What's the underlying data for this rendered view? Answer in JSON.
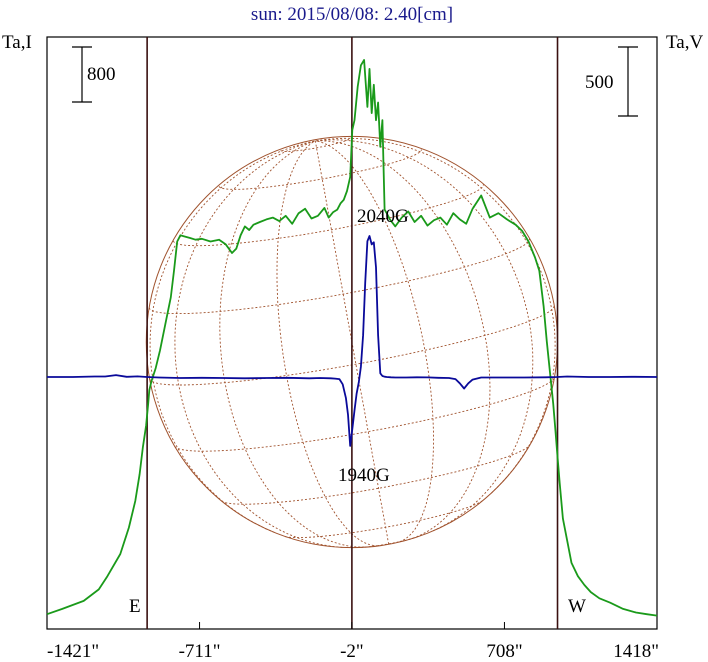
{
  "title": "sun: 2015/08/08: 2.40[cm]",
  "left_axis_label": "Ta,I",
  "right_axis_label": "Ta,V",
  "left_scale_bar": "800",
  "right_scale_bar": "500",
  "limb_left_label": "E",
  "limb_right_label": "W",
  "annotations": [
    "2040G",
    "1940G"
  ],
  "colors": {
    "title": "#1a1a8c",
    "stokes_i": "#1a9a1a",
    "stokes_v": "#0a0a9a",
    "grid": "#a0522d",
    "frame": "#000000",
    "limb_lines": "#3a1010"
  },
  "chart_data": {
    "type": "line",
    "title": "sun: 2015/08/08: 2.40[cm]",
    "xlabel": "",
    "x_tick_labels": [
      "-1421\"",
      "-711\"",
      "-2\"",
      "708\"",
      "1418\""
    ],
    "x_ticks": [
      -1421,
      -711,
      -2,
      708,
      1418
    ],
    "xlim": [
      -1421,
      1418
    ],
    "limb_positions": [
      -955,
      955
    ],
    "center": -2,
    "series": [
      {
        "name": "Ta,I",
        "color": "#1a9a1a",
        "x": [
          -1421,
          -1350,
          -1250,
          -1180,
          -1140,
          -1080,
          -1040,
          -1010,
          -990,
          -975,
          -960,
          -950,
          -945,
          -935,
          -915,
          -895,
          -870,
          -845,
          -830,
          -815,
          -800,
          -785,
          -770,
          -755,
          -730,
          -700,
          -660,
          -620,
          -590,
          -560,
          -540,
          -520,
          -500,
          -480,
          -460,
          -430,
          -400,
          -370,
          -340,
          -310,
          -280,
          -250,
          -220,
          -190,
          -160,
          -130,
          -110,
          -90,
          -70,
          -55,
          -40,
          -25,
          -10,
          0,
          10,
          25,
          40,
          55,
          70,
          80,
          90,
          100,
          110,
          120,
          130,
          140,
          150,
          160,
          175,
          200,
          230,
          260,
          290,
          320,
          350,
          380,
          410,
          440,
          470,
          500,
          530,
          560,
          600,
          640,
          680,
          720,
          760,
          790,
          820,
          850,
          870,
          890,
          905,
          920,
          935,
          945,
          955,
          965,
          980,
          1000,
          1020,
          1050,
          1080,
          1110,
          1150,
          1200,
          1260,
          1320,
          1370,
          1418
        ],
        "y": [
          20,
          80,
          170,
          300,
          450,
          700,
          1000,
          1300,
          1600,
          1900,
          2150,
          2400,
          2550,
          2650,
          2800,
          3000,
          3300,
          3600,
          3900,
          4230,
          4300,
          4290,
          4280,
          4270,
          4250,
          4260,
          4230,
          4250,
          4200,
          4100,
          4150,
          4300,
          4400,
          4360,
          4420,
          4450,
          4480,
          4500,
          4460,
          4520,
          4430,
          4550,
          4600,
          4490,
          4520,
          4610,
          4500,
          4560,
          4590,
          4660,
          4700,
          4800,
          4960,
          5490,
          5600,
          5980,
          6220,
          6280,
          5750,
          6180,
          5680,
          6000,
          5600,
          5800,
          5300,
          5600,
          4590,
          4550,
          4480,
          4400,
          4500,
          4570,
          4450,
          4520,
          4410,
          4470,
          4500,
          4420,
          4550,
          4480,
          4430,
          4600,
          4750,
          4500,
          4550,
          4480,
          4420,
          4350,
          4230,
          4050,
          3900,
          3500,
          3100,
          2750,
          2400,
          2100,
          1800,
          1500,
          1100,
          850,
          600,
          450,
          350,
          270,
          200,
          150,
          80,
          40,
          20,
          5
        ],
        "ylim": [
          0,
          6500
        ]
      },
      {
        "name": "Ta,V",
        "color": "#0a0a9a",
        "x": [
          -1421,
          -1300,
          -1200,
          -1150,
          -1100,
          -1050,
          -1000,
          -955,
          -900,
          -800,
          -700,
          -600,
          -500,
          -400,
          -300,
          -200,
          -150,
          -100,
          -80,
          -60,
          -45,
          -30,
          -20,
          -10,
          0,
          10,
          20,
          30,
          40,
          50,
          60,
          70,
          80,
          90,
          100,
          110,
          120,
          130,
          140,
          150,
          160,
          180,
          200,
          250,
          300,
          350,
          400,
          450,
          480,
          500,
          520,
          540,
          560,
          600,
          700,
          800,
          900,
          955,
          1000,
          1100,
          1200,
          1300,
          1418
        ],
        "y": [
          0,
          0,
          5,
          5,
          18,
          2,
          6,
          0,
          -5,
          -10,
          -8,
          -10,
          -12,
          -10,
          -8,
          -12,
          -10,
          -12,
          -15,
          -20,
          -70,
          -200,
          -360,
          -660,
          -500,
          -320,
          -160,
          -50,
          100,
          400,
          900,
          1300,
          1350,
          1270,
          1290,
          1050,
          400,
          35,
          10,
          3,
          0,
          -3,
          -5,
          -5,
          -3,
          -4,
          -8,
          -10,
          -20,
          -60,
          -110,
          -60,
          -25,
          -5,
          -5,
          -5,
          -3,
          0,
          5,
          0,
          0,
          2,
          0
        ],
        "ylim": [
          -1000,
          1800
        ]
      }
    ],
    "scale_bars": {
      "left": 800,
      "right": 500
    },
    "grid": "heliographic"
  }
}
